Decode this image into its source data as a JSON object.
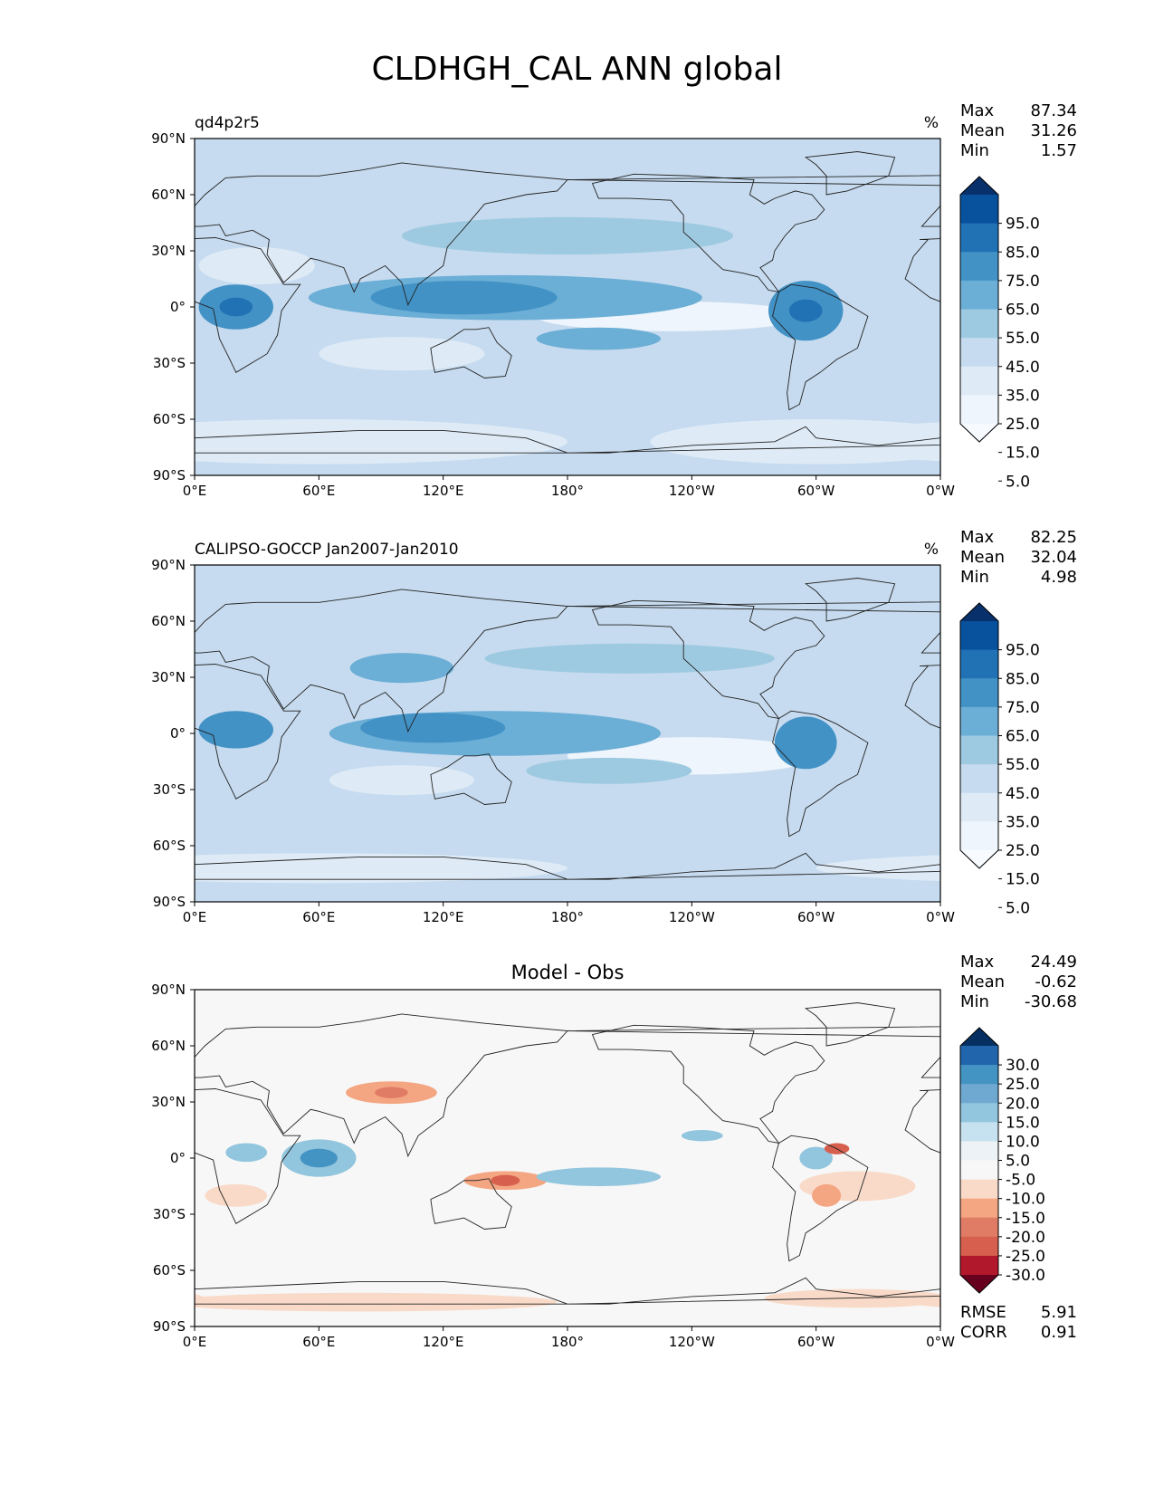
{
  "figure_title": "CLDHGH_CAL ANN global",
  "chart_data": [
    {
      "type": "heatmap",
      "title": "qd4p2r5",
      "units": "%",
      "stats": [
        {
          "label": "Max",
          "value": "87.34"
        },
        {
          "label": "Mean",
          "value": "31.26"
        },
        {
          "label": "Min",
          "value": "1.57"
        }
      ],
      "colorbar": {
        "ticks": [
          "95.0",
          "85.0",
          "75.0",
          "65.0",
          "55.0",
          "45.0",
          "35.0",
          "25.0",
          "15.0",
          "5.0"
        ],
        "colors": [
          "#08306b",
          "#08519c",
          "#2171b5",
          "#4292c6",
          "#6baed6",
          "#9ecae1",
          "#c6dbef",
          "#deebf7",
          "#eef5fc",
          "#f7fbff"
        ]
      },
      "x_ticks": [
        "0°E",
        "60°E",
        "120°E",
        "180°",
        "120°W",
        "60°W",
        "0°W"
      ],
      "y_ticks": [
        "90°N",
        "60°N",
        "30°N",
        "0°",
        "30°S",
        "60°S",
        "90°S"
      ],
      "xlim": [
        0,
        360
      ],
      "ylim": [
        -90,
        90
      ],
      "base_color": "#c6dbef",
      "features": [
        {
          "lon": 60,
          "lat": -72,
          "rlon": 120,
          "rlat": 12,
          "color": "#deebf7"
        },
        {
          "lon": 300,
          "lat": -72,
          "rlon": 80,
          "rlat": 12,
          "color": "#deebf7"
        },
        {
          "lon": 30,
          "lat": 22,
          "rlon": 28,
          "rlat": 10,
          "color": "#deebf7"
        },
        {
          "lon": 230,
          "lat": -5,
          "rlon": 65,
          "rlat": 8,
          "color": "#eef5fc"
        },
        {
          "lon": 100,
          "lat": -25,
          "rlon": 40,
          "rlat": 9,
          "color": "#deebf7"
        },
        {
          "lon": 180,
          "lat": 38,
          "rlon": 80,
          "rlat": 10,
          "color": "#9ecae1"
        },
        {
          "lon": 150,
          "lat": 5,
          "rlon": 95,
          "rlat": 12,
          "color": "#6baed6"
        },
        {
          "lon": 130,
          "lat": 5,
          "rlon": 45,
          "rlat": 9,
          "color": "#4292c6"
        },
        {
          "lon": 20,
          "lat": 0,
          "rlon": 18,
          "rlat": 12,
          "color": "#4292c6"
        },
        {
          "lon": 20,
          "lat": 0,
          "rlon": 8,
          "rlat": 5,
          "color": "#2171b5"
        },
        {
          "lon": 295,
          "lat": -2,
          "rlon": 18,
          "rlat": 16,
          "color": "#4292c6"
        },
        {
          "lon": 295,
          "lat": -2,
          "rlon": 8,
          "rlat": 6,
          "color": "#2171b5"
        },
        {
          "lon": 195,
          "lat": -17,
          "rlon": 30,
          "rlat": 6,
          "color": "#6baed6"
        }
      ]
    },
    {
      "type": "heatmap",
      "title": "CALIPSO-GOCCP Jan2007-Jan2010",
      "units": "%",
      "stats": [
        {
          "label": "Max",
          "value": "82.25"
        },
        {
          "label": "Mean",
          "value": "32.04"
        },
        {
          "label": "Min",
          "value": "4.98"
        }
      ],
      "colorbar": {
        "ticks": [
          "95.0",
          "85.0",
          "75.0",
          "65.0",
          "55.0",
          "45.0",
          "35.0",
          "25.0",
          "15.0",
          "5.0"
        ],
        "colors": [
          "#08306b",
          "#08519c",
          "#2171b5",
          "#4292c6",
          "#6baed6",
          "#9ecae1",
          "#c6dbef",
          "#deebf7",
          "#eef5fc",
          "#f7fbff"
        ]
      },
      "x_ticks": [
        "0°E",
        "60°E",
        "120°E",
        "180°",
        "120°W",
        "60°W",
        "0°W"
      ],
      "y_ticks": [
        "90°N",
        "60°N",
        "30°N",
        "0°",
        "30°S",
        "60°S",
        "90°S"
      ],
      "xlim": [
        0,
        360
      ],
      "ylim": [
        -90,
        90
      ],
      "base_color": "#c6dbef",
      "features": [
        {
          "lon": 60,
          "lat": -72,
          "rlon": 120,
          "rlat": 8,
          "color": "#deebf7"
        },
        {
          "lon": 240,
          "lat": -12,
          "rlon": 60,
          "rlat": 10,
          "color": "#eef5fc"
        },
        {
          "lon": 100,
          "lat": -25,
          "rlon": 35,
          "rlat": 8,
          "color": "#deebf7"
        },
        {
          "lon": 100,
          "lat": 35,
          "rlon": 25,
          "rlat": 8,
          "color": "#6baed6"
        },
        {
          "lon": 210,
          "lat": 40,
          "rlon": 70,
          "rlat": 8,
          "color": "#9ecae1"
        },
        {
          "lon": 145,
          "lat": 0,
          "rlon": 80,
          "rlat": 12,
          "color": "#6baed6"
        },
        {
          "lon": 115,
          "lat": 3,
          "rlon": 35,
          "rlat": 8,
          "color": "#4292c6"
        },
        {
          "lon": 20,
          "lat": 2,
          "rlon": 18,
          "rlat": 10,
          "color": "#4292c6"
        },
        {
          "lon": 295,
          "lat": -5,
          "rlon": 15,
          "rlat": 14,
          "color": "#4292c6"
        },
        {
          "lon": 200,
          "lat": -20,
          "rlon": 40,
          "rlat": 7,
          "color": "#9ecae1"
        }
      ]
    },
    {
      "type": "heatmap",
      "title": "Model - Obs",
      "units": "",
      "stats": [
        {
          "label": "Max",
          "value": "24.49"
        },
        {
          "label": "Mean",
          "value": "-0.62"
        },
        {
          "label": "Min",
          "value": "-30.68"
        }
      ],
      "colorbar": {
        "ticks": [
          "30.0",
          "25.0",
          "20.0",
          "15.0",
          "10.0",
          "5.0",
          "-5.0",
          "-10.0",
          "-15.0",
          "-20.0",
          "-25.0",
          "-30.0"
        ],
        "colors": [
          "#053061",
          "#2166ac",
          "#4393c3",
          "#6fa8d0",
          "#92c5de",
          "#c6e1ef",
          "#ecf2f6",
          "#f7f7f7",
          "#f9dac8",
          "#f4a582",
          "#e07b65",
          "#d6604d",
          "#b2182b",
          "#67001f"
        ]
      },
      "x_ticks": [
        "0°E",
        "60°E",
        "120°E",
        "180°",
        "120°W",
        "60°W",
        "0°W"
      ],
      "y_ticks": [
        "90°N",
        "60°N",
        "30°N",
        "0°",
        "30°S",
        "60°S",
        "90°S"
      ],
      "xlim": [
        0,
        360
      ],
      "ylim": [
        -90,
        90
      ],
      "base_color": "#f7f7f7",
      "features": [
        {
          "lon": 80,
          "lat": -77,
          "rlon": 95,
          "rlat": 5,
          "color": "#f9dac8"
        },
        {
          "lon": 320,
          "lat": -75,
          "rlon": 45,
          "rlat": 5,
          "color": "#f9dac8"
        },
        {
          "lon": 95,
          "lat": 35,
          "rlon": 22,
          "rlat": 6,
          "color": "#f4a582"
        },
        {
          "lon": 95,
          "lat": 35,
          "rlon": 8,
          "rlat": 3,
          "color": "#e07b65"
        },
        {
          "lon": 150,
          "lat": -12,
          "rlon": 20,
          "rlat": 5,
          "color": "#f4a582"
        },
        {
          "lon": 150,
          "lat": -12,
          "rlon": 7,
          "rlat": 3,
          "color": "#d6604d"
        },
        {
          "lon": 60,
          "lat": 0,
          "rlon": 18,
          "rlat": 10,
          "color": "#92c5de"
        },
        {
          "lon": 60,
          "lat": 0,
          "rlon": 9,
          "rlat": 5,
          "color": "#4393c3"
        },
        {
          "lon": 25,
          "lat": 3,
          "rlon": 10,
          "rlat": 5,
          "color": "#92c5de"
        },
        {
          "lon": 195,
          "lat": -10,
          "rlon": 30,
          "rlat": 5,
          "color": "#92c5de"
        },
        {
          "lon": 245,
          "lat": 12,
          "rlon": 10,
          "rlat": 3,
          "color": "#92c5de"
        },
        {
          "lon": 300,
          "lat": 0,
          "rlon": 8,
          "rlat": 6,
          "color": "#92c5de"
        },
        {
          "lon": 320,
          "lat": -15,
          "rlon": 28,
          "rlat": 8,
          "color": "#f9dac8"
        },
        {
          "lon": 20,
          "lat": -20,
          "rlon": 15,
          "rlat": 6,
          "color": "#f9dac8"
        },
        {
          "lon": 310,
          "lat": 5,
          "rlon": 6,
          "rlat": 3,
          "color": "#d6604d"
        },
        {
          "lon": 305,
          "lat": -20,
          "rlon": 7,
          "rlat": 6,
          "color": "#f4a582"
        }
      ],
      "rmse": {
        "label": "RMSE",
        "value": "5.91"
      },
      "corr": {
        "label": "CORR",
        "value": "0.91"
      }
    }
  ]
}
